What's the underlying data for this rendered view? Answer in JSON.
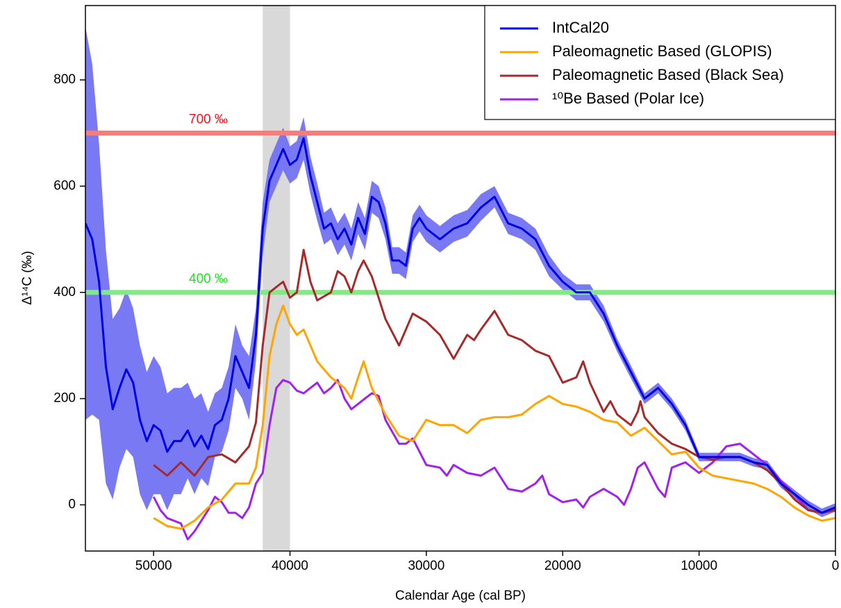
{
  "chart_data": {
    "type": "line",
    "xlabel": "Calendar Age (cal BP)",
    "ylabel": "Δ¹⁴C (‰)",
    "xlim": [
      55000,
      0
    ],
    "ylim": [
      -87,
      940
    ],
    "xticks": [
      50000,
      40000,
      30000,
      20000,
      10000,
      0
    ],
    "yticks": [
      0,
      200,
      400,
      600,
      800
    ],
    "legend": "upper right",
    "shaded_region": {
      "x": [
        42000,
        40000
      ],
      "color": "#d9d9d9"
    },
    "hlines": [
      {
        "value": 700,
        "label": "700 ‰",
        "color": "#f08080"
      },
      {
        "value": 400,
        "label": "400 ‰",
        "color": "#7fec7f"
      }
    ],
    "series": [
      {
        "name": "IntCal20",
        "color": "#0000e6",
        "band_color": "#7272f2",
        "x": [
          55000,
          54500,
          54000,
          53500,
          53000,
          52500,
          52000,
          51500,
          51000,
          50500,
          50000,
          49500,
          49000,
          48500,
          48000,
          47500,
          47000,
          46500,
          46000,
          45500,
          45000,
          44500,
          44000,
          43500,
          43000,
          42500,
          42000,
          41500,
          41000,
          40500,
          40000,
          39500,
          39000,
          38500,
          38000,
          37500,
          37000,
          36500,
          36000,
          35500,
          35000,
          34500,
          34000,
          33500,
          33000,
          32500,
          32000,
          31500,
          31000,
          30500,
          30000,
          29000,
          28000,
          27000,
          26000,
          25000,
          24000,
          23000,
          22000,
          21000,
          20000,
          19000,
          18000,
          17000,
          16000,
          15000,
          14000,
          13000,
          12000,
          11000,
          10000,
          9000,
          8000,
          7000,
          6000,
          5000,
          4000,
          3000,
          2000,
          1000,
          0
        ],
        "values": [
          530,
          500,
          420,
          260,
          180,
          220,
          255,
          230,
          160,
          120,
          150,
          140,
          100,
          120,
          120,
          140,
          110,
          130,
          105,
          150,
          160,
          200,
          280,
          250,
          220,
          320,
          520,
          610,
          640,
          670,
          640,
          650,
          690,
          620,
          570,
          520,
          530,
          500,
          520,
          490,
          540,
          510,
          580,
          570,
          530,
          460,
          460,
          450,
          520,
          540,
          520,
          500,
          520,
          530,
          560,
          580,
          530,
          520,
          500,
          450,
          420,
          400,
          400,
          360,
          300,
          250,
          200,
          220,
          190,
          150,
          90,
          90,
          90,
          90,
          80,
          75,
          40,
          20,
          0,
          -15,
          -5
        ],
        "lower": [
          160,
          170,
          160,
          40,
          10,
          70,
          105,
          90,
          20,
          -10,
          20,
          20,
          -10,
          20,
          20,
          50,
          20,
          50,
          35,
          90,
          100,
          140,
          220,
          200,
          160,
          270,
          470,
          570,
          600,
          630,
          605,
          615,
          650,
          585,
          535,
          490,
          500,
          470,
          490,
          460,
          510,
          480,
          550,
          540,
          500,
          435,
          435,
          425,
          495,
          515,
          495,
          475,
          495,
          505,
          535,
          560,
          510,
          500,
          480,
          430,
          405,
          385,
          385,
          345,
          288,
          238,
          190,
          210,
          180,
          140,
          82,
          82,
          82,
          82,
          72,
          67,
          32,
          12,
          -8,
          -23,
          -13
        ],
        "upper": [
          900,
          830,
          680,
          480,
          350,
          370,
          405,
          370,
          300,
          250,
          280,
          260,
          210,
          220,
          220,
          230,
          200,
          210,
          175,
          210,
          220,
          260,
          340,
          300,
          280,
          370,
          570,
          650,
          680,
          710,
          675,
          685,
          730,
          655,
          605,
          550,
          560,
          530,
          550,
          520,
          570,
          540,
          610,
          600,
          560,
          485,
          485,
          475,
          545,
          565,
          545,
          525,
          545,
          555,
          585,
          600,
          550,
          540,
          520,
          470,
          435,
          415,
          415,
          375,
          312,
          262,
          210,
          230,
          200,
          160,
          98,
          98,
          98,
          98,
          88,
          83,
          48,
          28,
          8,
          -7,
          3
        ]
      },
      {
        "name": "Paleomagnetic Based (GLOPIS)",
        "color": "#ffa500",
        "x": [
          50000,
          49000,
          48000,
          47000,
          46000,
          45000,
          44000,
          43000,
          42500,
          42000,
          41500,
          41000,
          40500,
          40000,
          39500,
          39000,
          38500,
          38000,
          37000,
          36000,
          35500,
          35000,
          34600,
          34000,
          33000,
          32000,
          31000,
          30000,
          29000,
          28000,
          27000,
          26000,
          25000,
          24000,
          23000,
          22000,
          21000,
          20000,
          19000,
          18000,
          17000,
          16000,
          15000,
          14000,
          13000,
          12000,
          11000,
          10000,
          9000,
          8000,
          7000,
          6000,
          5000,
          4000,
          3000,
          2000,
          1000,
          0
        ],
        "values": [
          -25,
          -40,
          -45,
          -30,
          -5,
          10,
          40,
          40,
          70,
          150,
          280,
          340,
          375,
          340,
          320,
          330,
          300,
          270,
          240,
          220,
          200,
          240,
          270,
          220,
          170,
          130,
          120,
          160,
          150,
          150,
          135,
          160,
          165,
          165,
          170,
          190,
          205,
          190,
          185,
          175,
          160,
          155,
          130,
          145,
          120,
          95,
          100,
          70,
          55,
          50,
          45,
          40,
          30,
          15,
          -5,
          -20,
          -30,
          -25
        ]
      },
      {
        "name": "Paleomagnetic Based (Black Sea)",
        "color": "#a52a2a",
        "x": [
          50000,
          49000,
          48000,
          47000,
          46000,
          45000,
          44000,
          43000,
          42500,
          42000,
          41500,
          41000,
          40500,
          40000,
          39500,
          39000,
          38500,
          38000,
          37000,
          36500,
          36000,
          35500,
          35000,
          34600,
          34000,
          33000,
          32000,
          31000,
          30000,
          29000,
          28000,
          27000,
          26500,
          26000,
          25000,
          24000,
          23000,
          22000,
          21000,
          20000,
          19000,
          18500,
          18000,
          17000,
          16500,
          16000,
          15000,
          14500,
          14300,
          14000,
          13000,
          12000,
          11000,
          10000,
          9000,
          8000,
          7000,
          6000,
          5000,
          4000,
          3000,
          2000,
          1000,
          0
        ],
        "values": [
          75,
          55,
          80,
          55,
          90,
          95,
          80,
          110,
          155,
          300,
          400,
          410,
          420,
          390,
          400,
          480,
          420,
          385,
          400,
          440,
          430,
          400,
          440,
          460,
          430,
          350,
          300,
          360,
          345,
          320,
          275,
          320,
          310,
          330,
          365,
          320,
          310,
          290,
          280,
          230,
          240,
          270,
          230,
          175,
          195,
          170,
          150,
          175,
          195,
          165,
          135,
          115,
          105,
          90,
          85,
          90,
          90,
          80,
          65,
          40,
          10,
          -10,
          -15,
          -10
        ]
      },
      {
        "name": "¹⁰Be Based (Polar Ice)",
        "color": "#a020f0",
        "x": [
          50000,
          49500,
          49000,
          48000,
          47500,
          47000,
          46000,
          45500,
          45000,
          44500,
          44000,
          43500,
          43000,
          42500,
          42000,
          41500,
          41000,
          40500,
          40000,
          39500,
          39000,
          38500,
          38000,
          37500,
          37000,
          36500,
          36000,
          35500,
          35000,
          34500,
          34000,
          33500,
          33000,
          32000,
          31500,
          31000,
          30500,
          30000,
          29000,
          28500,
          28000,
          27000,
          26000,
          25000,
          24000,
          23000,
          22000,
          21500,
          21000,
          20000,
          19000,
          18500,
          18000,
          17000,
          16000,
          15500,
          15000,
          14500,
          14000,
          13000,
          12500,
          12000,
          11500,
          11000,
          10000,
          9000,
          8000,
          7000,
          6000,
          5000,
          4000,
          3000,
          2000,
          1000,
          0
        ],
        "values": [
          15,
          -10,
          -25,
          -35,
          -65,
          -50,
          -10,
          15,
          5,
          -15,
          -15,
          -25,
          -5,
          40,
          60,
          150,
          220,
          235,
          230,
          215,
          210,
          220,
          230,
          210,
          220,
          235,
          200,
          180,
          190,
          200,
          210,
          205,
          160,
          115,
          115,
          125,
          100,
          75,
          70,
          55,
          75,
          60,
          55,
          70,
          30,
          25,
          40,
          55,
          20,
          5,
          10,
          -5,
          15,
          30,
          15,
          0,
          30,
          70,
          80,
          30,
          15,
          70,
          75,
          80,
          60,
          80,
          110,
          115,
          95,
          75,
          45,
          20,
          -10,
          -15,
          -5
        ]
      }
    ]
  }
}
